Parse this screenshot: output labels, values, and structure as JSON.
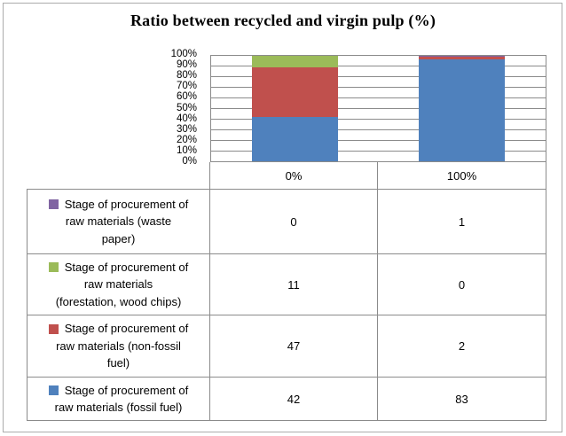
{
  "title": "Ratio between recycled and virgin pulp (%)",
  "colors": {
    "series_waste_paper": "#8064A2",
    "series_forestation": "#9BBB59",
    "series_non_fossil": "#C0504D",
    "series_fossil": "#4F81BD",
    "gridline": "#8b8b8b",
    "frame": "#ababab"
  },
  "chart_data": {
    "type": "bar",
    "subtype": "stacked-100-percent-column",
    "title": "Ratio between recycled and virgin pulp (%)",
    "categories": [
      "0%",
      "100%"
    ],
    "series": [
      {
        "name": "Stage of procurement of raw materials (waste paper)",
        "color": "#8064A2",
        "values": [
          0,
          1
        ]
      },
      {
        "name": "Stage of procurement of raw materials (forestation, wood chips)",
        "color": "#9BBB59",
        "values": [
          11,
          0
        ]
      },
      {
        "name": "Stage of procurement of raw materials (non-fossil fuel)",
        "color": "#C0504D",
        "values": [
          47,
          2
        ]
      },
      {
        "name": "Stage of procurement of raw materials (fossil fuel)",
        "color": "#4F81BD",
        "values": [
          42,
          83
        ]
      }
    ],
    "xlabel": "",
    "ylabel": "",
    "ylim": [
      0,
      100
    ],
    "yticks": [
      "0%",
      "10%",
      "20%",
      "30%",
      "40%",
      "50%",
      "60%",
      "70%",
      "80%",
      "90%",
      "100%"
    ],
    "grid": true,
    "legend_position": "data-table-left-keys"
  },
  "table": {
    "header": [
      "0%",
      "100%"
    ],
    "rows": [
      {
        "label": "Stage of procurement of raw materials (waste paper)",
        "lines": [
          "Stage of procurement of",
          "raw materials (waste",
          "paper)"
        ],
        "swatch": "#8064A2",
        "values": [
          "0",
          "1"
        ]
      },
      {
        "label": "Stage of procurement of raw materials (forestation, wood chips)",
        "lines": [
          "Stage of procurement of",
          "raw materials",
          "(forestation, wood chips)"
        ],
        "swatch": "#9BBB59",
        "values": [
          "11",
          "0"
        ]
      },
      {
        "label": "Stage of procurement of raw materials (non-fossil fuel)",
        "lines": [
          "Stage of procurement of",
          "raw materials (non-fossil",
          "fuel)"
        ],
        "swatch": "#C0504D",
        "values": [
          "47",
          "2"
        ]
      },
      {
        "label": "Stage of procurement of raw materials (fossil fuel)",
        "lines": [
          "Stage of procurement of",
          "raw materials (fossil fuel)"
        ],
        "swatch": "#4F81BD",
        "values": [
          "42",
          "83"
        ]
      }
    ]
  }
}
